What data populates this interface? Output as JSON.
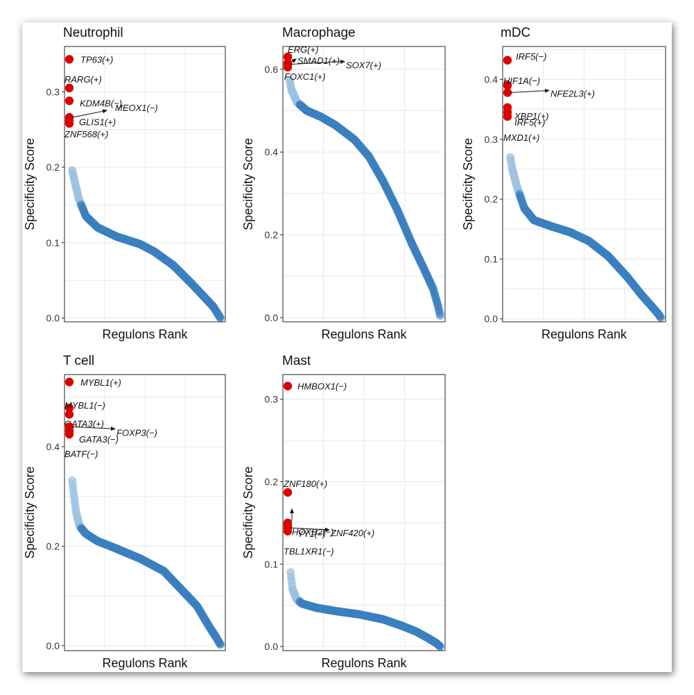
{
  "colors": {
    "regulon_point": "#3a7fbf",
    "regulon_point_light": "#9cc2e2",
    "top_point": "#dd0000",
    "grid": "#e8e8e8"
  },
  "chart_data": [
    {
      "type": "scatter",
      "title": "Neutrophil",
      "xlabel": "Regulons Rank",
      "ylabel": "Specificity Score",
      "ylim": [
        -0.005,
        0.36
      ],
      "yticks": [
        0.0,
        0.1,
        0.2,
        0.3
      ],
      "ytick_labels": [
        "0.0",
        "0.1",
        "0.2",
        "0.3"
      ],
      "grid": true,
      "n_regulons": 320,
      "curve": [
        [
          0,
          0.343
        ],
        [
          0.3,
          0.265
        ],
        [
          1,
          0.258
        ],
        [
          3,
          0.22
        ],
        [
          6,
          0.196
        ],
        [
          10,
          0.185
        ],
        [
          20,
          0.158
        ],
        [
          35,
          0.135
        ],
        [
          60,
          0.12
        ],
        [
          100,
          0.108
        ],
        [
          150,
          0.098
        ],
        [
          180,
          0.088
        ],
        [
          220,
          0.07
        ],
        [
          260,
          0.045
        ],
        [
          290,
          0.025
        ],
        [
          305,
          0.015
        ],
        [
          315,
          0.005
        ],
        [
          320,
          0.0
        ]
      ],
      "top_points": [
        {
          "label": "TP63(+)",
          "y": 0.343
        },
        {
          "label": "RARG(+)",
          "y": 0.305
        },
        {
          "label": "KDM4B(−)",
          "y": 0.288
        },
        {
          "label": "MEOX1(−)",
          "y": 0.266
        },
        {
          "label": "GLIS1(+)",
          "y": 0.262
        },
        {
          "label": "ZNF568(+)",
          "y": 0.258
        }
      ]
    },
    {
      "type": "scatter",
      "title": "Macrophage",
      "xlabel": "Regulons Rank",
      "ylabel": "Specificity Score",
      "ylim": [
        -0.01,
        0.655
      ],
      "yticks": [
        0.0,
        0.2,
        0.4,
        0.6
      ],
      "ytick_labels": [
        "0.0",
        "0.2",
        "0.4",
        "0.6"
      ],
      "grid": true,
      "n_regulons": 320,
      "curve": [
        [
          0,
          0.63
        ],
        [
          0.5,
          0.605
        ],
        [
          3,
          0.58
        ],
        [
          8,
          0.55
        ],
        [
          20,
          0.52
        ],
        [
          40,
          0.5
        ],
        [
          70,
          0.485
        ],
        [
          100,
          0.465
        ],
        [
          140,
          0.43
        ],
        [
          170,
          0.39
        ],
        [
          200,
          0.33
        ],
        [
          230,
          0.26
        ],
        [
          260,
          0.18
        ],
        [
          285,
          0.12
        ],
        [
          305,
          0.07
        ],
        [
          315,
          0.03
        ],
        [
          320,
          0.005
        ]
      ],
      "top_points": [
        {
          "label": "ERG(+)",
          "y": 0.63
        },
        {
          "label": "SMAD1(+)",
          "y": 0.615
        },
        {
          "label": "SOX7(+)",
          "y": 0.612
        },
        {
          "label": "FOXC1(+)",
          "y": 0.605
        }
      ]
    },
    {
      "type": "scatter",
      "title": "mDC",
      "xlabel": "Regulons Rank",
      "ylabel": "Specificity Score",
      "ylim": [
        -0.005,
        0.455
      ],
      "yticks": [
        0.0,
        0.1,
        0.2,
        0.3,
        0.4
      ],
      "ytick_labels": [
        "0.0",
        "0.1",
        "0.2",
        "0.3",
        "0.4"
      ],
      "grid": true,
      "n_regulons": 320,
      "curve": [
        [
          0,
          0.432
        ],
        [
          0.3,
          0.34
        ],
        [
          2,
          0.31
        ],
        [
          5,
          0.275
        ],
        [
          10,
          0.25
        ],
        [
          20,
          0.22
        ],
        [
          35,
          0.185
        ],
        [
          55,
          0.165
        ],
        [
          90,
          0.155
        ],
        [
          130,
          0.145
        ],
        [
          170,
          0.13
        ],
        [
          210,
          0.105
        ],
        [
          250,
          0.07
        ],
        [
          280,
          0.04
        ],
        [
          300,
          0.022
        ],
        [
          315,
          0.008
        ],
        [
          320,
          0.002
        ]
      ],
      "top_points": [
        {
          "label": "IRF5(−)",
          "y": 0.432
        },
        {
          "label": "HIF1A(−)",
          "y": 0.39
        },
        {
          "label": "NFE2L3(+)",
          "y": 0.378
        },
        {
          "label": "XBP1(+)",
          "y": 0.353
        },
        {
          "label": "IRF5(+)",
          "y": 0.345
        },
        {
          "label": "MXD1(+)",
          "y": 0.338
        }
      ]
    },
    {
      "type": "scatter",
      "title": "T cell",
      "xlabel": "Regulons Rank",
      "ylabel": "Specificity Score",
      "ylim": [
        -0.01,
        0.545
      ],
      "yticks": [
        0.0,
        0.2,
        0.4
      ],
      "ytick_labels": [
        "0.0",
        "0.2",
        "0.4"
      ],
      "grid": true,
      "n_regulons": 320,
      "curve": [
        [
          0,
          0.53
        ],
        [
          0.3,
          0.42
        ],
        [
          2,
          0.38
        ],
        [
          5,
          0.34
        ],
        [
          10,
          0.3
        ],
        [
          15,
          0.265
        ],
        [
          22,
          0.24
        ],
        [
          35,
          0.225
        ],
        [
          60,
          0.21
        ],
        [
          100,
          0.195
        ],
        [
          150,
          0.175
        ],
        [
          200,
          0.15
        ],
        [
          240,
          0.11
        ],
        [
          270,
          0.08
        ],
        [
          295,
          0.04
        ],
        [
          312,
          0.015
        ],
        [
          320,
          0.002
        ]
      ],
      "top_points": [
        {
          "label": "MYBL1(+)",
          "y": 0.53
        },
        {
          "label": "MYBL1(−)",
          "y": 0.478
        },
        {
          "label": "GATA3(+)",
          "y": 0.465
        },
        {
          "label": "FOXP3(−)",
          "y": 0.44
        },
        {
          "label": "GATA3(−)",
          "y": 0.432
        },
        {
          "label": "BATF(−)",
          "y": 0.425
        }
      ]
    },
    {
      "type": "scatter",
      "title": "Mast",
      "xlabel": "Regulons Rank",
      "ylabel": "Specificity Score",
      "ylim": [
        -0.005,
        0.33
      ],
      "yticks": [
        0.0,
        0.1,
        0.2,
        0.3
      ],
      "ytick_labels": [
        "0.0",
        "0.1",
        "0.2",
        "0.3"
      ],
      "grid": true,
      "n_regulons": 320,
      "curve": [
        [
          0,
          0.316
        ],
        [
          0.3,
          0.187
        ],
        [
          1,
          0.14
        ],
        [
          3,
          0.115
        ],
        [
          6,
          0.09
        ],
        [
          10,
          0.07
        ],
        [
          18,
          0.058
        ],
        [
          30,
          0.052
        ],
        [
          60,
          0.047
        ],
        [
          100,
          0.043
        ],
        [
          150,
          0.039
        ],
        [
          200,
          0.033
        ],
        [
          240,
          0.025
        ],
        [
          270,
          0.018
        ],
        [
          295,
          0.01
        ],
        [
          312,
          0.004
        ],
        [
          320,
          0.0
        ]
      ],
      "top_points": [
        {
          "label": "HMBOX1(−)",
          "y": 0.316
        },
        {
          "label": "ZNF180(+)",
          "y": 0.187
        },
        {
          "label": "YY1(−)",
          "y": 0.15
        },
        {
          "label": "HOXB2(−)",
          "y": 0.147
        },
        {
          "label": "ZNF420(+)",
          "y": 0.144
        },
        {
          "label": "TBL1XR1(−)",
          "y": 0.14
        }
      ]
    }
  ]
}
